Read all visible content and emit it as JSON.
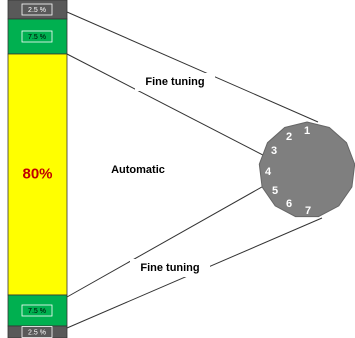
{
  "segments": [
    {
      "label": "2.5 %"
    },
    {
      "label": "7.5 %"
    },
    {
      "label": "80%"
    },
    {
      "label": "7.5 %"
    },
    {
      "label": "2.5 %"
    }
  ],
  "labels": {
    "fine_tuning_top": "Fine tuning",
    "automatic": "Automatic",
    "fine_tuning_bottom": "Fine tuning"
  },
  "dial": {
    "numbers": [
      "1",
      "2",
      "3",
      "4",
      "5",
      "6",
      "7"
    ]
  }
}
